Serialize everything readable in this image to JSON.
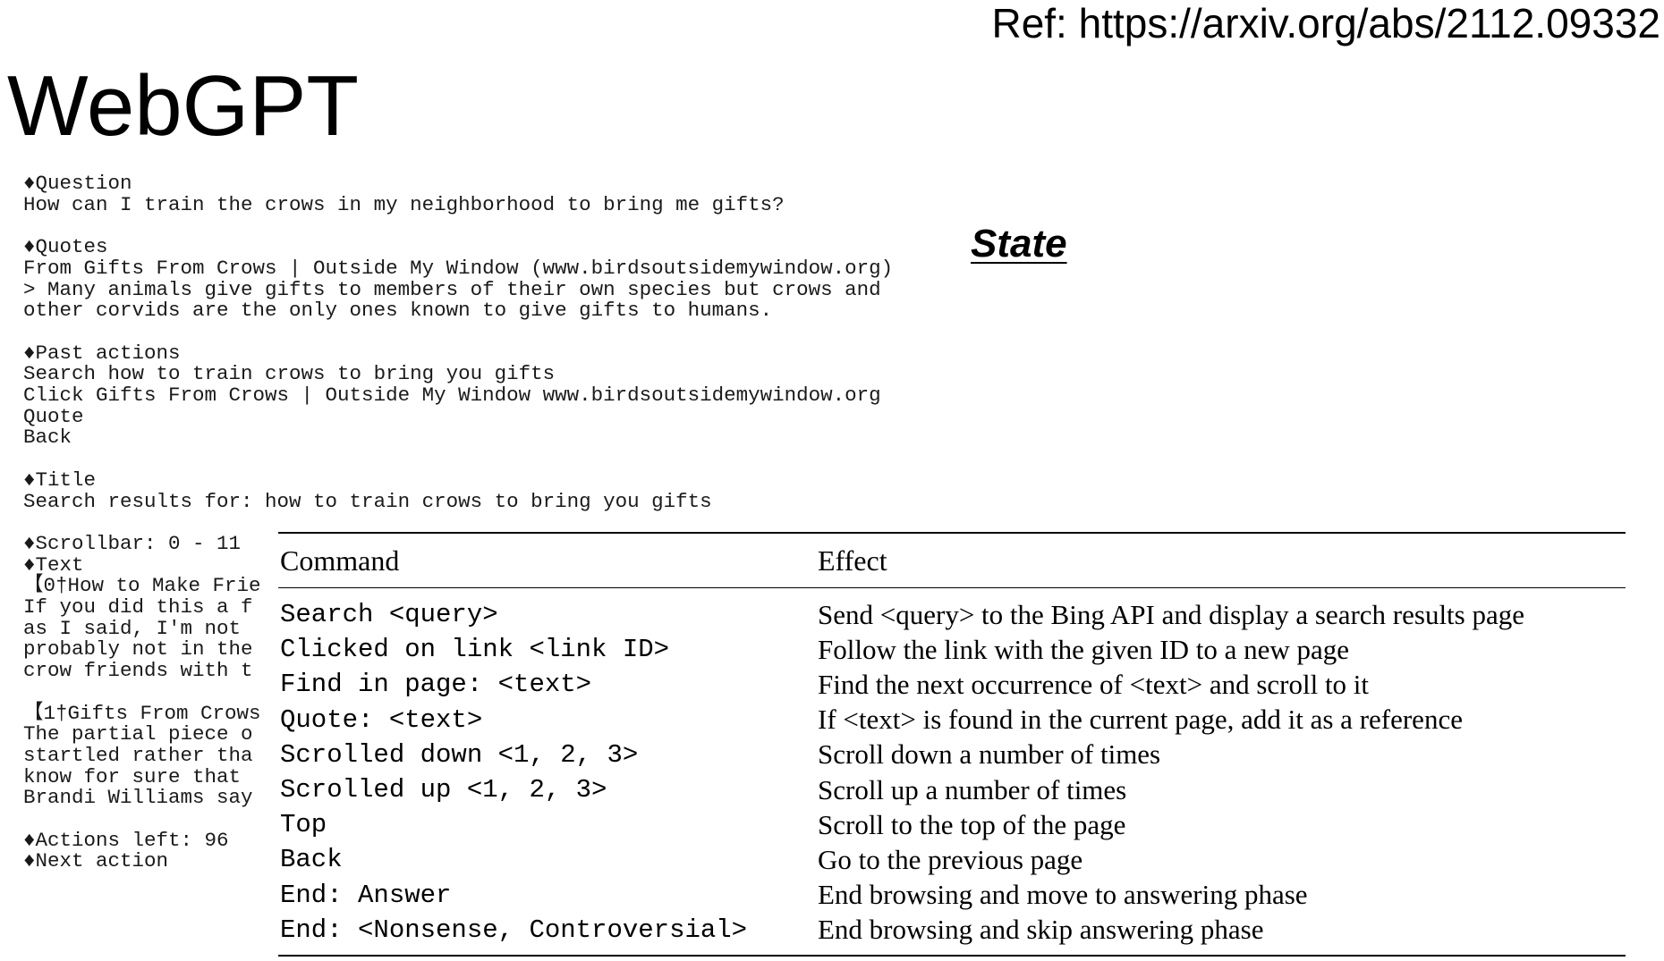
{
  "header": {
    "ref": "Ref: https://arxiv.org/abs/2112.09332",
    "title": "WebGPT"
  },
  "state": {
    "label": "State",
    "blocks": [
      [
        "♦Question",
        "How can I train the crows in my neighborhood to bring me gifts?"
      ],
      [
        "♦Quotes",
        "From Gifts From Crows | Outside My Window (www.birdsoutsidemywindow.org)",
        "> Many animals give gifts to members of their own species but crows and",
        "other corvids are the only ones known to give gifts to humans."
      ],
      [
        "♦Past actions",
        "Search how to train crows to bring you gifts",
        "Click Gifts From Crows | Outside My Window www.birdsoutsidemywindow.org",
        "Quote",
        "Back"
      ],
      [
        "♦Title",
        "Search results for: how to train crows to bring you gifts"
      ],
      [
        "♦Scrollbar: 0 - 11",
        "♦Text",
        "【0†How to Make Frie",
        "If you did this a f",
        "as I said, I'm not",
        "probably not in the",
        "crow friends with t"
      ],
      [
        "【1†Gifts From Crows",
        "The partial piece o",
        "startled rather tha",
        "know for sure that",
        "Brandi Williams say"
      ],
      [
        "♦Actions left: 96",
        "♦Next action"
      ]
    ]
  },
  "table": {
    "header": [
      "Command",
      "Effect"
    ],
    "rows": [
      [
        "Search <query>",
        "Send <query> to the Bing API and display a search results page"
      ],
      [
        "Clicked on link <link ID>",
        "Follow the link with the given ID to a new page"
      ],
      [
        "Find in page: <text>",
        "Find the next occurrence of <text> and scroll to it"
      ],
      [
        "Quote: <text>",
        "If <text> is found in the current page, add it as a reference"
      ],
      [
        "Scrolled down <1, 2, 3>",
        "Scroll down a number of times"
      ],
      [
        "Scrolled up <1, 2, 3>",
        "Scroll up a number of times"
      ],
      [
        "Top",
        "Scroll to the top of the page"
      ],
      [
        "Back",
        "Go to the previous page"
      ],
      [
        "End: Answer",
        "End browsing and move to answering phase"
      ],
      [
        "End: <Nonsense, Controversial>",
        "End browsing and skip answering phase"
      ]
    ]
  }
}
